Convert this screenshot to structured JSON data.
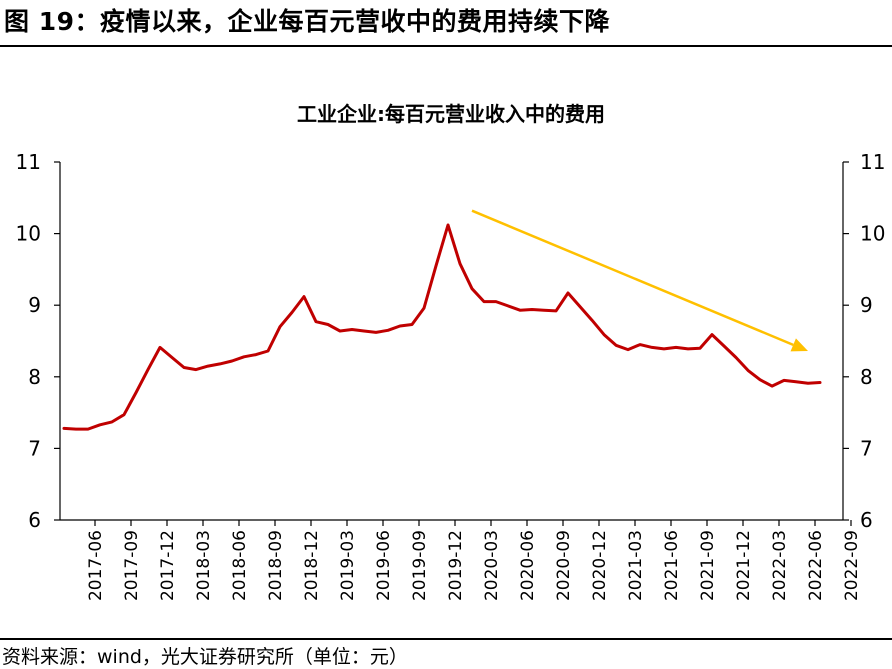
{
  "figure": {
    "title": "图 19：疫情以来，企业每百元营收中的费用持续下降",
    "source": "资料来源：wind，光大证券研究所（单位：元）"
  },
  "colors": {
    "line": "#C00000",
    "trend_arrow": "#FFC000",
    "axis": "#000000"
  },
  "chart_data": {
    "type": "line",
    "title": "工业企业:每百元营业收入中的费用",
    "xlabel": "",
    "ylabel": "",
    "ylim": [
      6,
      11
    ],
    "yticks": [
      6,
      7,
      8,
      9,
      10,
      11
    ],
    "secondary_yticks": [
      6,
      7,
      8,
      9,
      10,
      11
    ],
    "grid": false,
    "x_tick_labels": [
      "2017-06",
      "2017-09",
      "2017-12",
      "2018-03",
      "2018-06",
      "2018-09",
      "2018-12",
      "2019-03",
      "2019-06",
      "2019-09",
      "2019-12",
      "2020-03",
      "2020-06",
      "2020-09",
      "2020-12",
      "2021-03",
      "2021-06",
      "2021-09",
      "2021-12",
      "2022-03",
      "2022-06",
      "2022-09"
    ],
    "series": [
      {
        "name": "",
        "x": [
          "2017-06",
          "2017-07",
          "2017-08",
          "2017-09",
          "2017-10",
          "2017-11",
          "2017-12",
          "2018-01",
          "2018-02",
          "2018-03",
          "2018-04",
          "2018-05",
          "2018-06",
          "2018-07",
          "2018-08",
          "2018-09",
          "2018-10",
          "2018-11",
          "2018-12",
          "2019-01",
          "2019-02",
          "2019-03",
          "2019-04",
          "2019-05",
          "2019-06",
          "2019-07",
          "2019-08",
          "2019-09",
          "2019-10",
          "2019-11",
          "2019-12",
          "2020-01",
          "2020-02",
          "2020-03",
          "2020-04",
          "2020-05",
          "2020-06",
          "2020-07",
          "2020-08",
          "2020-09",
          "2020-10",
          "2020-11",
          "2020-12",
          "2021-01",
          "2021-02",
          "2021-03",
          "2021-04",
          "2021-05",
          "2021-06",
          "2021-07",
          "2021-08",
          "2021-09",
          "2021-10",
          "2021-11",
          "2021-12",
          "2022-01",
          "2022-02",
          "2022-03",
          "2022-04",
          "2022-05",
          "2022-06",
          "2022-07",
          "2022-08",
          "2022-09"
        ],
        "values": [
          7.28,
          7.27,
          7.27,
          7.33,
          7.37,
          7.47,
          7.78,
          8.1,
          8.41,
          8.27,
          8.13,
          8.1,
          8.15,
          8.18,
          8.22,
          8.28,
          8.31,
          8.36,
          8.7,
          8.9,
          9.12,
          8.77,
          8.73,
          8.64,
          8.66,
          8.64,
          8.62,
          8.65,
          8.71,
          8.73,
          8.96,
          9.55,
          10.12,
          9.58,
          9.23,
          9.05,
          9.05,
          8.99,
          8.93,
          8.94,
          8.93,
          8.92,
          9.17,
          8.98,
          8.79,
          8.59,
          8.44,
          8.38,
          8.45,
          8.41,
          8.39,
          8.41,
          8.39,
          8.4,
          8.59,
          8.43,
          8.27,
          8.09,
          7.96,
          7.87,
          7.95,
          7.93,
          7.91,
          7.92
        ]
      }
    ],
    "annotations": [
      {
        "type": "arrow",
        "from": {
          "x": "2020-04",
          "y": 10.32
        },
        "to": {
          "x": "2022-08",
          "y": 8.36
        }
      }
    ]
  }
}
